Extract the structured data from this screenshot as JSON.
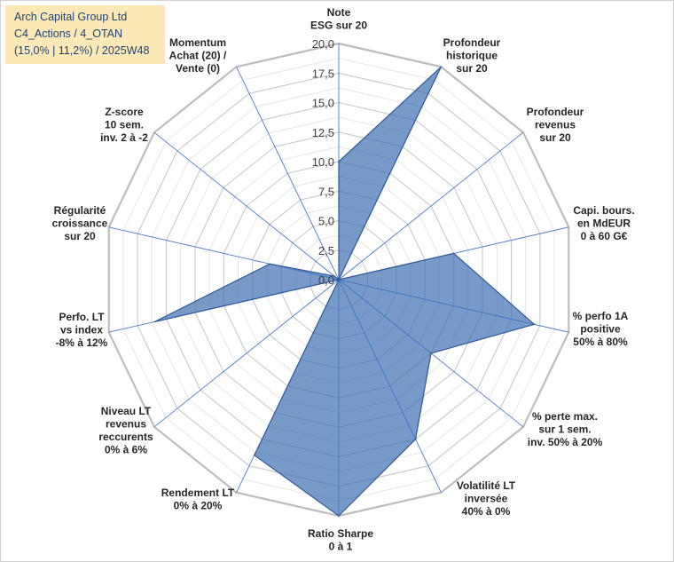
{
  "title_box": {
    "line1": "Arch Capital Group Ltd",
    "line2": "C4_Actions / 4_OTAN",
    "line3": "(15,0% | 11,2%) / 2025W48"
  },
  "colors": {
    "fill": "#3d6fb0",
    "fill_opacity": "0.70",
    "stroke": "#2e5a9c",
    "grid_major": "#c8c8c8",
    "grid_minor": "#e3e3e3",
    "spoke": "#4a7cc7",
    "title_bg": "#fde9b6",
    "title_text": "#1f3f7a"
  },
  "chart_data": {
    "type": "radar",
    "title": "Arch Capital Group Ltd",
    "rmin": 0,
    "rmax": 20,
    "tick_step": 2.5,
    "ticks": [
      "0,0",
      "2,5",
      "5,0",
      "7,5",
      "10,0",
      "12,5",
      "15,0",
      "17,5",
      "20,0"
    ],
    "categories": [
      {
        "label": [
          "Note",
          "ESG sur 20"
        ],
        "value": 10.0
      },
      {
        "label": [
          "Profondeur",
          "historique",
          "sur 20"
        ],
        "value": 20.0
      },
      {
        "label": [
          "Profondeur",
          "revenus",
          "sur 20"
        ],
        "value": 0.0
      },
      {
        "label": [
          "Capi. bours.",
          "en MdEUR",
          "0 à 60 G€"
        ],
        "value": 10.0
      },
      {
        "label": [
          "% perfo 1A",
          "positive",
          "50% à 80%"
        ],
        "value": 17.0
      },
      {
        "label": [
          "% perte max.",
          "sur 1 sem.",
          "inv. 50% à 20%"
        ],
        "value": 10.0
      },
      {
        "label": [
          "Volatilité LT",
          "inversée",
          "40% à 0%"
        ],
        "value": 15.0
      },
      {
        "label": [
          "Ratio Sharpe",
          "0 à 1"
        ],
        "value": 20.0
      },
      {
        "label": [
          "Rendement LT",
          "0% à 20%"
        ],
        "value": 16.5
      },
      {
        "label": [
          "Niveau LT",
          "revenus",
          "reccurents",
          "0% à 6%"
        ],
        "value": 0.0
      },
      {
        "label": [
          "Perfo. LT",
          "vs index",
          "-8% à 12%"
        ],
        "value": 16.0
      },
      {
        "label": [
          "Régularité",
          "croissance",
          "sur 20"
        ],
        "value": 6.0
      },
      {
        "label": [
          "Z-score",
          "10 sem.",
          "inv. 2 à -2"
        ],
        "value": 0.5
      },
      {
        "label": [
          "Momentum",
          "Achat (20) /",
          "Vente (0)"
        ],
        "value": 0.0
      }
    ]
  }
}
